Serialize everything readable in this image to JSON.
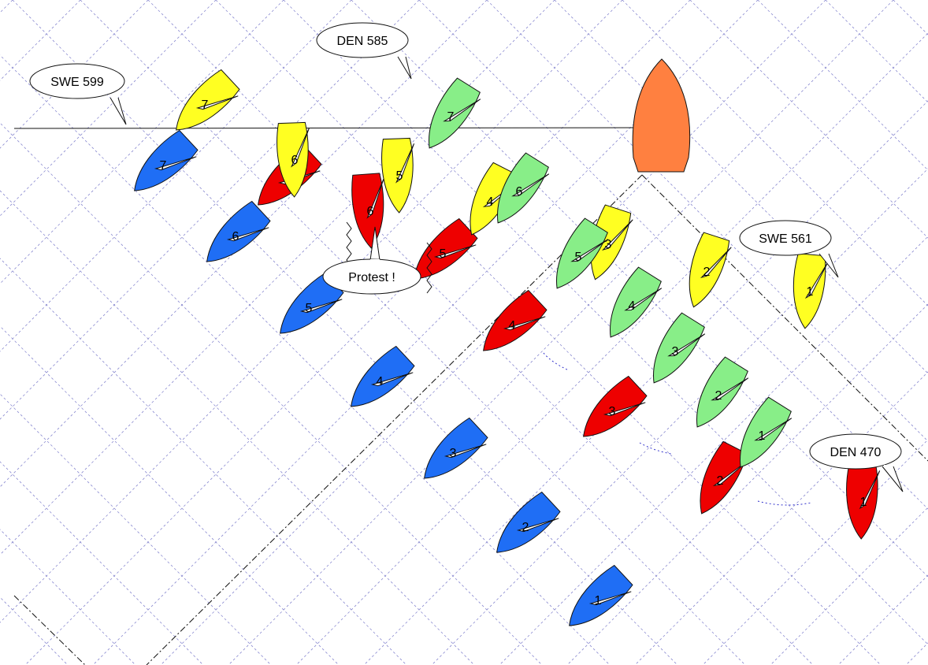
{
  "colors": {
    "blue": "#1f6ef5",
    "red": "#ee0000",
    "yellow": "#ffff22",
    "green": "#88ee88",
    "committee": "#ff8040",
    "grid": "#8a8ad0",
    "line": "#111111"
  },
  "boats": [
    {
      "id": "SWE 599",
      "color": "blue",
      "positions": [
        "1",
        "2",
        "3",
        "4",
        "5",
        "6",
        "7"
      ]
    },
    {
      "id": "DEN 470",
      "color": "red",
      "positions": [
        "1",
        "2",
        "3",
        "4",
        "5",
        "6",
        "7"
      ]
    },
    {
      "id": "SWE 561",
      "color": "yellow",
      "positions": [
        "1",
        "2",
        "3",
        "4",
        "5",
        "6",
        "7"
      ]
    },
    {
      "id": "DEN 585",
      "color": "green",
      "positions": [
        "1",
        "2",
        "3",
        "4",
        "5",
        "6",
        "7"
      ]
    }
  ],
  "callouts": {
    "swe599": "SWE 599",
    "den585": "DEN 585",
    "swe561": "SWE 561",
    "den470": "DEN 470",
    "protest": "Protest !"
  },
  "committee_boat": {
    "icon": "committee-boat-icon"
  }
}
